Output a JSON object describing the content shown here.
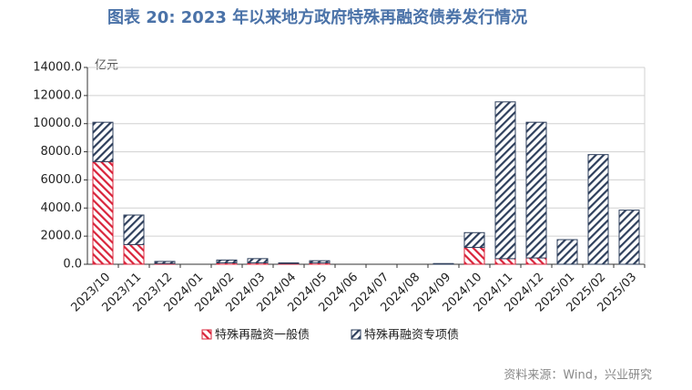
{
  "chart_data": {
    "type": "bar",
    "stacked": true,
    "title": "图表 20: 2023 年以来地方政府特殊再融资债券发行情况",
    "unit": "亿元",
    "source": "资料来源：Wind，兴业研究",
    "categories": [
      "2023/10",
      "2023/11",
      "2023/12",
      "2024/01",
      "2024/02",
      "2024/03",
      "2024/04",
      "2024/05",
      "2024/06",
      "2024/07",
      "2024/08",
      "2024/09",
      "2024/10",
      "2024/11",
      "2024/12",
      "2025/01",
      "2025/02",
      "2025/03"
    ],
    "series": [
      {
        "name": "特殊再融资一般债",
        "color": "#d9243b",
        "values": [
          7300,
          1400,
          50,
          0,
          100,
          100,
          50,
          100,
          0,
          0,
          0,
          0,
          1200,
          400,
          450,
          0,
          0,
          0
        ]
      },
      {
        "name": "特殊再融资专项债",
        "color": "#2e3f5c",
        "values": [
          2800,
          2100,
          150,
          0,
          200,
          300,
          50,
          150,
          0,
          0,
          0,
          50,
          1050,
          11150,
          9650,
          1750,
          7800,
          3850
        ]
      }
    ],
    "ylim": [
      0,
      14000
    ],
    "yticks": [
      {
        "value": 0,
        "label": "0.0"
      },
      {
        "value": 2000,
        "label": "2000.0"
      },
      {
        "value": 4000,
        "label": "4000.0"
      },
      {
        "value": 6000,
        "label": "6000.0"
      },
      {
        "value": 8000,
        "label": "8000.0"
      },
      {
        "value": 10000,
        "label": "10000.0"
      },
      {
        "value": 12000,
        "label": "12000.0"
      },
      {
        "value": 14000,
        "label": "14000.0"
      }
    ],
    "grid": true
  }
}
